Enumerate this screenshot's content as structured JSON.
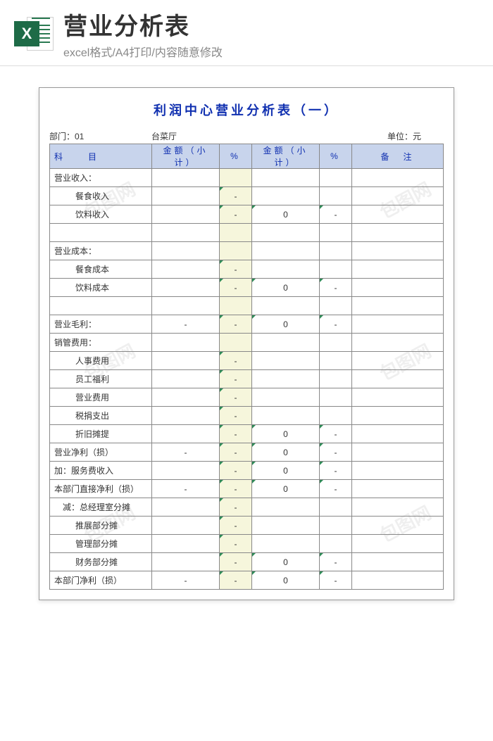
{
  "banner": {
    "iconLetter": "X",
    "title": "营业分析表",
    "subtitle": "excel格式/A4打印/内容随意修改"
  },
  "sheet": {
    "title": "利润中心营业分析表（一）",
    "meta": {
      "deptLabel": "部门：01",
      "deptName": "台菜厅",
      "unit": "单位：元"
    },
    "headers": {
      "subject": "科　　目",
      "amount1": "金额（小计）",
      "pct1": "%",
      "amount2": "金额（小计）",
      "pct2": "%",
      "remark": "备　注"
    },
    "rows": [
      {
        "type": "section",
        "label": "营业收入："
      },
      {
        "type": "item",
        "label": "餐食收入",
        "pct1": "-"
      },
      {
        "type": "item",
        "label": "饮料收入",
        "pct1": "-",
        "amt2": "0",
        "pct2": "-"
      },
      {
        "type": "blank"
      },
      {
        "type": "section",
        "label": "营业成本："
      },
      {
        "type": "item",
        "label": "餐食成本",
        "pct1": "-"
      },
      {
        "type": "item",
        "label": "饮料成本",
        "pct1": "-",
        "amt2": "0",
        "pct2": "-"
      },
      {
        "type": "blank"
      },
      {
        "type": "total",
        "label": "营业毛利：",
        "amt1": "-",
        "pct1": "-",
        "amt2": "0",
        "pct2": "-"
      },
      {
        "type": "section",
        "label": "销管费用："
      },
      {
        "type": "item",
        "label": "人事费用",
        "pct1": "-"
      },
      {
        "type": "item",
        "label": "员工福利",
        "pct1": "-"
      },
      {
        "type": "item",
        "label": "营业费用",
        "pct1": "-"
      },
      {
        "type": "item",
        "label": "税捐支出",
        "pct1": "-"
      },
      {
        "type": "item",
        "label": "折旧摊提",
        "pct1": "-",
        "amt2": "0",
        "pct2": "-"
      },
      {
        "type": "total",
        "label": "营业净利（损）",
        "amt1": "-",
        "pct1": "-",
        "amt2": "0",
        "pct2": "-"
      },
      {
        "type": "total",
        "label": "加：服务费收入",
        "pct1": "-",
        "amt2": "0",
        "pct2": "-"
      },
      {
        "type": "total",
        "label": "本部门直接净利（损）",
        "amt1": "-",
        "pct1": "-",
        "amt2": "0",
        "pct2": "-"
      },
      {
        "type": "sub",
        "label": "减：总经理室分摊",
        "pct1": "-"
      },
      {
        "type": "item",
        "label": "推展部分摊",
        "pct1": "-"
      },
      {
        "type": "item",
        "label": "管理部分摊",
        "pct1": "-"
      },
      {
        "type": "item",
        "label": "财务部分摊",
        "pct1": "-",
        "amt2": "0",
        "pct2": "-"
      },
      {
        "type": "total",
        "label": "本部门净利（损）",
        "amt1": "-",
        "pct1": "-",
        "amt2": "0",
        "pct2": "-"
      }
    ]
  },
  "watermark": "包图网",
  "style": {
    "headerBg": "#c8d4ec",
    "pctBg": "#f6f6dc",
    "titleColor": "#1030b0",
    "borderColor": "#888"
  }
}
